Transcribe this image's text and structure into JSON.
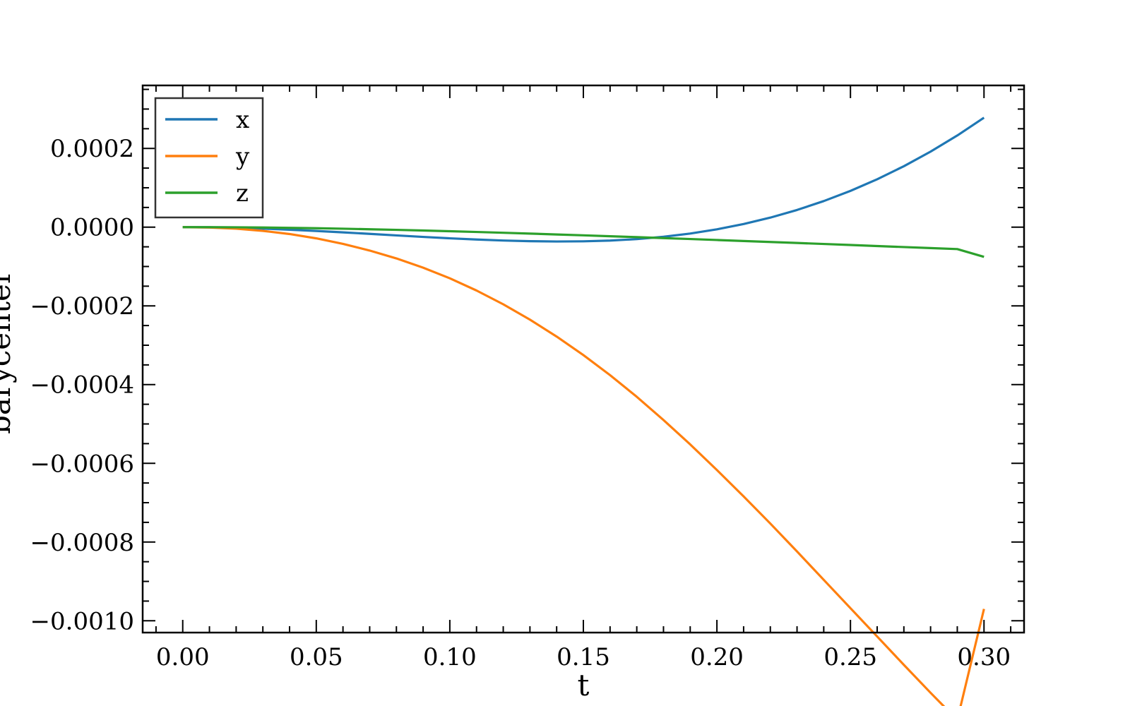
{
  "chart_data": {
    "type": "line",
    "xlabel": "t",
    "ylabel": "barycenter",
    "xlim": [
      -0.015,
      0.315
    ],
    "ylim": [
      -0.00103,
      0.00036
    ],
    "x_ticks": [
      0.0,
      0.05,
      0.1,
      0.15,
      0.2,
      0.25,
      0.3
    ],
    "x_tick_labels": [
      "0.00",
      "0.05",
      "0.10",
      "0.15",
      "0.20",
      "0.25",
      "0.30"
    ],
    "y_ticks": [
      0.0002,
      0.0,
      -0.0002,
      -0.0004,
      -0.0006,
      -0.0008,
      -0.001
    ],
    "y_tick_labels": [
      "0.0002",
      "0.0000",
      "−0.0002",
      "−0.0004",
      "−0.0006",
      "−0.0008",
      "−0.0010"
    ],
    "grid": false,
    "legend_position": "top-left",
    "x": [
      0.0,
      0.01,
      0.02,
      0.03,
      0.04,
      0.05,
      0.06,
      0.07,
      0.08,
      0.09,
      0.1,
      0.11,
      0.12,
      0.13,
      0.14,
      0.15,
      0.16,
      0.17,
      0.18,
      0.19,
      0.2,
      0.21,
      0.22,
      0.23,
      0.24,
      0.25,
      0.26,
      0.27,
      0.28,
      0.29,
      0.3
    ],
    "series": [
      {
        "name": "x",
        "color": "#1f77b4",
        "values": [
          0.0,
          -5e-07,
          -1.8e-06,
          -3.8e-06,
          -6.5e-06,
          -9.7e-06,
          -1.33e-05,
          -1.71e-05,
          -2.1e-05,
          -2.48e-05,
          -2.84e-05,
          -3.15e-05,
          -3.4e-05,
          -3.57e-05,
          -3.65e-05,
          -3.6e-05,
          -3.41e-05,
          -3.04e-05,
          -2.45e-05,
          -1.63e-05,
          -5.6e-06,
          7.9e-06,
          2.42e-05,
          4.36e-05,
          6.62e-05,
          9.21e-05,
          0.0001216,
          0.0001548,
          0.0001918,
          0.0002328,
          0.000278
        ]
      },
      {
        "name": "y",
        "color": "#ff7f0e",
        "values": [
          0.0,
          -1e-06,
          -4e-06,
          -9.5e-06,
          -1.75e-05,
          -2.85e-05,
          -4.25e-05,
          -5.95e-05,
          -7.95e-05,
          -0.000103,
          -0.00013,
          -0.000161,
          -0.000196,
          -0.000235,
          -0.000278,
          -0.000325,
          -0.000376,
          -0.000431,
          -0.00049,
          -0.000552,
          -0.000617,
          -0.000684,
          -0.000753,
          -0.000824,
          -0.000896,
          -0.000968,
          -0.00104,
          -0.001112,
          -0.001183,
          -0.001252,
          -0.00097
        ]
      },
      {
        "name": "z",
        "color": "#2ca02c",
        "values": [
          0.0,
          -1e-07,
          -4e-07,
          -1e-06,
          -1.8e-06,
          -2.8e-06,
          -4e-06,
          -5.4e-06,
          -6.9e-06,
          -8.6e-06,
          -1.04e-05,
          -1.23e-05,
          -1.43e-05,
          -1.64e-05,
          -1.86e-05,
          -2.08e-05,
          -2.31e-05,
          -2.54e-05,
          -2.78e-05,
          -3.02e-05,
          -3.27e-05,
          -3.52e-05,
          -3.77e-05,
          -4.02e-05,
          -4.28e-05,
          -4.54e-05,
          -4.8e-05,
          -5.06e-05,
          -5.32e-05,
          -5.58e-05,
          -7.55e-05
        ]
      }
    ]
  }
}
